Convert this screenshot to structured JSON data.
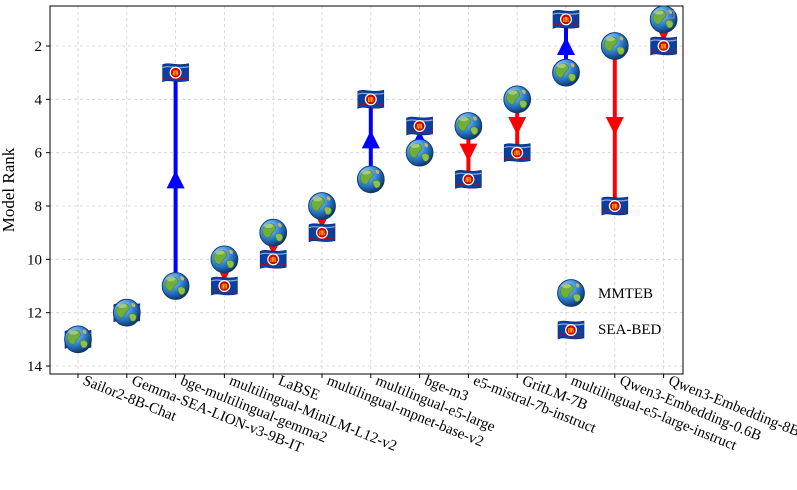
{
  "chart_data": {
    "type": "scatter",
    "title": "",
    "xlabel": "",
    "ylabel": "Model Rank",
    "ylim": [
      14.3,
      0.5
    ],
    "yticks": [
      2,
      4,
      6,
      8,
      10,
      12,
      14
    ],
    "yinverted": true,
    "grid": true,
    "legend_position": "lower-right",
    "categories": [
      "Sailor2-8B-Chat",
      "Gemma-SEA-LION-v3-9B-IT",
      "bge-multilingual-gemma2",
      "multilingual-MiniLM-L12-v2",
      "LaBSE",
      "multilingual-mpnet-base-v2",
      "multilingual-e5-large",
      "bge-m3",
      "e5-mistral-7b-instruct",
      "GritLM-7B",
      "multilingual-e5-large-instruct",
      "Qwen3-Embedding-0.6B",
      "Qwen3-Embedding-8B"
    ],
    "series": [
      {
        "name": "MMTEB",
        "marker": "globe",
        "values": [
          13,
          12,
          11,
          10,
          9,
          8,
          7,
          6,
          5,
          4,
          3,
          2,
          1
        ]
      },
      {
        "name": "SEA-BED",
        "marker": "asean-flag",
        "values": [
          13,
          12,
          3,
          11,
          10,
          9,
          4,
          5,
          7,
          6,
          1,
          8,
          2
        ]
      }
    ],
    "arrow_colors": {
      "improved": "#0000ff",
      "declined": "#ff0000"
    },
    "legend": {
      "mmteb_label": "MMTEB",
      "seabed_label": "SEA-BED"
    }
  }
}
